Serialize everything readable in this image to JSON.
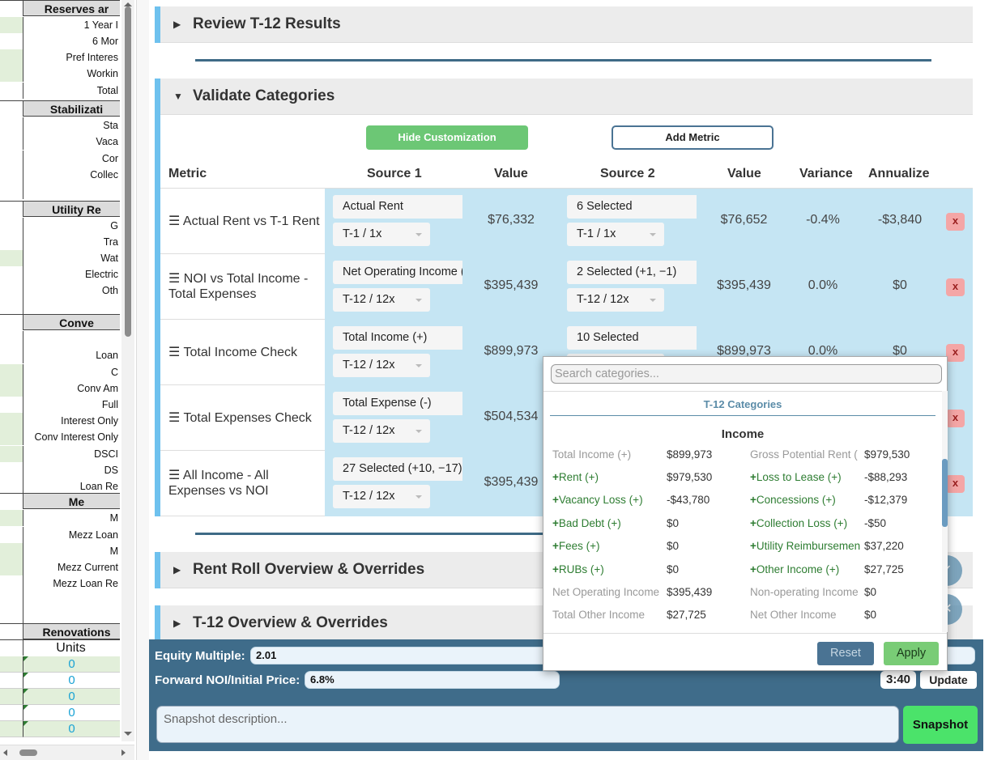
{
  "sheet": {
    "rows": [
      {
        "text": "Reserves ar",
        "type": "header"
      },
      {
        "text": "1 Year I",
        "green": true
      },
      {
        "text": "6 Mor",
        "green": false
      },
      {
        "text": "Pref Interes",
        "green": true
      },
      {
        "text": "Workin",
        "green": true
      },
      {
        "text": "Total",
        "green": false
      },
      {
        "text": "Stabilizati",
        "type": "header"
      },
      {
        "text": "Sta",
        "green": false
      },
      {
        "text": "Vaca",
        "green": false
      },
      {
        "text": "Cor",
        "green": false
      },
      {
        "text": "Collec",
        "green": false
      },
      {
        "text": "",
        "green": false
      },
      {
        "text": "Utility Re",
        "type": "header"
      },
      {
        "text": "G",
        "green": false
      },
      {
        "text": "Tra",
        "green": false
      },
      {
        "text": "Wat",
        "green": true
      },
      {
        "text": "Electric",
        "green": false
      },
      {
        "text": "Oth",
        "green": false
      },
      {
        "text": "",
        "green": false
      },
      {
        "text": "Conve",
        "type": "header"
      },
      {
        "text": "",
        "green": false
      },
      {
        "text": "Loan",
        "green": false
      },
      {
        "text": "C",
        "green": true
      },
      {
        "text": "Conv Am",
        "green": true
      },
      {
        "text": "Full",
        "green": false
      },
      {
        "text": "Interest Only",
        "green": true
      },
      {
        "text": "Conv Interest Only",
        "green": true
      },
      {
        "text": "DSCI",
        "green": true
      },
      {
        "text": "DS",
        "green": false
      },
      {
        "text": "Loan Re",
        "green": false
      },
      {
        "text": "Me",
        "type": "header"
      },
      {
        "text": "M",
        "green": true
      },
      {
        "text": "Mezz Loan",
        "green": false
      },
      {
        "text": "M",
        "green": true
      },
      {
        "text": "Mezz Current",
        "green": true
      },
      {
        "text": "Mezz Loan Re",
        "green": false
      },
      {
        "text": "",
        "green": false
      },
      {
        "text": "",
        "green": false
      },
      {
        "text": "Renovations",
        "type": "header"
      },
      {
        "text": "Units",
        "type": "units-header"
      }
    ],
    "units": [
      "0",
      "0",
      "0",
      "0",
      "0"
    ]
  },
  "sections": {
    "review": "Review T-12 Results",
    "validate": "Validate Categories",
    "rent_roll": "Rent Roll Overview & Overrides",
    "t12": "T-12 Overview & Overrides"
  },
  "buttons": {
    "hide_customization": "Hide Customization",
    "add_metric": "Add Metric"
  },
  "table": {
    "headers": [
      "Metric",
      "Source 1",
      "Value",
      "Source 2",
      "Value",
      "Variance",
      "Annualize"
    ],
    "rows": [
      {
        "metric": "☰ Actual Rent vs T-1 Rent",
        "source1": "Actual Rent",
        "period1": "T-1 / 1x",
        "value1": "$76,332",
        "source2": "6 Selected",
        "period2": "T-1 / 1x",
        "value2": "$76,652",
        "variance": "-0.4%",
        "annualize": "-$3,840",
        "remove": "x"
      },
      {
        "metric": "☰ NOI vs Total Income - Total Expenses",
        "source1": "Net Operating Income (",
        "period1": "T-12 / 12x",
        "value1": "$395,439",
        "source2": "2 Selected (+1, −1)",
        "period2": "T-12 / 12x",
        "value2": "$395,439",
        "variance": "0.0%",
        "annualize": "$0",
        "remove": "x"
      },
      {
        "metric": "☰ Total Income Check",
        "source1": "Total Income (+)",
        "period1": "T-12 / 12x",
        "value1": "$899,973",
        "source2": "10 Selected",
        "period2": "",
        "value2": "$899,973",
        "variance": "0.0%",
        "annualize": "$0",
        "remove": "x"
      },
      {
        "metric": "☰ Total Expenses Check",
        "source1": "Total Expense (-)",
        "period1": "T-12 / 12x",
        "value1": "$504,534",
        "source2": "",
        "period2": "",
        "value2": "",
        "variance": "",
        "annualize": "",
        "remove": "x"
      },
      {
        "metric": "☰ All Income - All Expenses vs NOI",
        "source1": "27 Selected (+10, −17)",
        "period1": "T-12 / 12x",
        "value1": "$395,439",
        "source2": "",
        "period2": "",
        "value2": "",
        "variance": "",
        "annualize": "",
        "remove": "x"
      }
    ]
  },
  "metrics_bar": {
    "equity_multiple_label": "Equity Multiple:",
    "equity_multiple_value": "2.01",
    "forward_noi_label": "Forward NOI/Initial Price:",
    "forward_noi_value": "6.8%",
    "timer": "3:40",
    "update_label": "Update"
  },
  "snapshot": {
    "placeholder": "Snapshot description...",
    "button": "Snapshot"
  },
  "popup": {
    "search_placeholder": "Search categories...",
    "section_title": "T-12 Categories",
    "group_title": "Income",
    "items": [
      {
        "name": "Total Income (+)",
        "amount": "$899,973",
        "addable": false,
        "col": 0
      },
      {
        "name": "Gross Potential Rent (",
        "amount": "$979,530",
        "addable": false,
        "col": 1
      },
      {
        "name": "Rent (+)",
        "amount": "$979,530",
        "addable": true,
        "col": 0
      },
      {
        "name": "Loss to Lease (+)",
        "amount": "-$88,293",
        "addable": true,
        "col": 1
      },
      {
        "name": "Vacancy Loss (+)",
        "amount": "-$43,780",
        "addable": true,
        "col": 0
      },
      {
        "name": "Concessions (+)",
        "amount": "-$12,379",
        "addable": true,
        "col": 1
      },
      {
        "name": "Bad Debt (+)",
        "amount": "$0",
        "addable": true,
        "col": 0
      },
      {
        "name": "Collection Loss (+)",
        "amount": "-$50",
        "addable": true,
        "col": 1
      },
      {
        "name": "Fees (+)",
        "amount": "$0",
        "addable": true,
        "col": 0
      },
      {
        "name": "Utility Reimbursemen",
        "amount": "$37,220",
        "addable": true,
        "col": 1
      },
      {
        "name": "RUBs (+)",
        "amount": "$0",
        "addable": true,
        "col": 0
      },
      {
        "name": "Other Income (+)",
        "amount": "$27,725",
        "addable": true,
        "col": 1
      },
      {
        "name": "Net Operating Income",
        "amount": "$395,439",
        "addable": false,
        "col": 0
      },
      {
        "name": "Non-operating Income",
        "amount": "$0",
        "addable": false,
        "col": 1
      },
      {
        "name": "Total Other Income",
        "amount": "$27,725",
        "addable": false,
        "col": 0
      },
      {
        "name": "Net Other Income",
        "amount": "$0",
        "addable": false,
        "col": 1
      }
    ],
    "reset": "Reset",
    "apply": "Apply"
  },
  "icons": {
    "collapsed": "triangle-right",
    "expanded": "triangle-down",
    "drag": "hamburger",
    "fab_top": "check",
    "fab_bottom": "close"
  }
}
